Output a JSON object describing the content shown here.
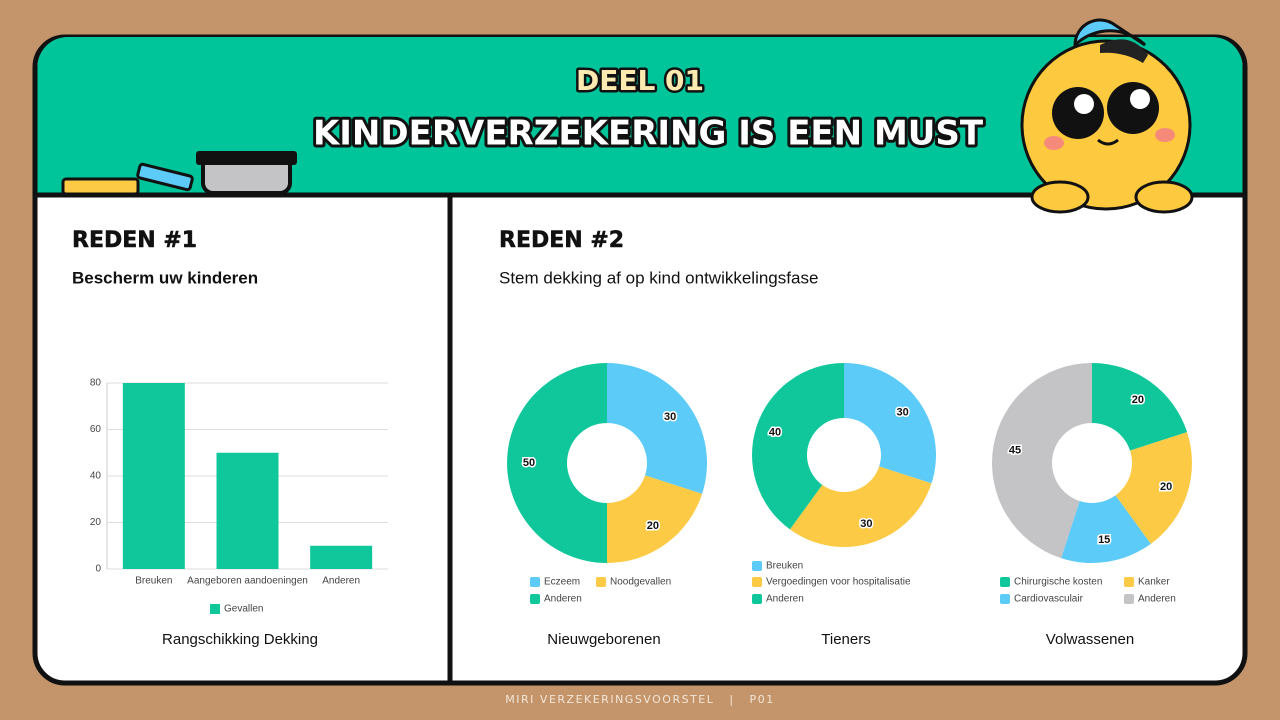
{
  "header": {
    "kicker": "DEEL 01",
    "title": "KINDERVERZEKERING IS EEN MUST"
  },
  "left": {
    "heading": "REDEN #1",
    "subheading": "Bescherm uw kinderen"
  },
  "right": {
    "heading": "REDEN #2",
    "subheading": "Stem dekking af op kind ontwikkelingsfase"
  },
  "footer": "MIRI VERZEKERINGSVOORSTEL   |   P01",
  "chart_data": [
    {
      "type": "bar",
      "title": "Rangschikking Dekking",
      "categories": [
        "Breuken",
        "Aangeboren aandoeningen",
        "Anderen"
      ],
      "series": [
        {
          "name": "Gevallen",
          "color": "#10c79c",
          "values": [
            80,
            50,
            10
          ]
        }
      ],
      "ylim": [
        0,
        80
      ],
      "yticks": [
        0,
        20,
        40,
        60,
        80
      ],
      "grid": true,
      "legend": "bottom"
    },
    {
      "type": "donut",
      "title": "Nieuwgeborenen",
      "categories": [
        "Eczeem",
        "Noodgevallen",
        "Anderen"
      ],
      "values": [
        30,
        20,
        50
      ],
      "colors": [
        "#5ccbf7",
        "#fcca45",
        "#10c79c"
      ],
      "legend": "bottom"
    },
    {
      "type": "donut",
      "title": "Tieners",
      "categories": [
        "Breuken",
        "Vergoedingen voor hospitalisatie",
        "Anderen"
      ],
      "values": [
        30,
        30,
        40
      ],
      "colors": [
        "#5ccbf7",
        "#fcca45",
        "#10c79c"
      ],
      "legend": "bottom"
    },
    {
      "type": "donut",
      "title": "Volwassenen",
      "categories": [
        "Chirurgische kosten",
        "Kanker",
        "Cardiovasculair",
        "Anderen"
      ],
      "values": [
        20,
        20,
        15,
        45
      ],
      "colors": [
        "#10c79c",
        "#fcca45",
        "#5ccbf7",
        "#c4c3c6"
      ],
      "legend": "bottom"
    }
  ]
}
